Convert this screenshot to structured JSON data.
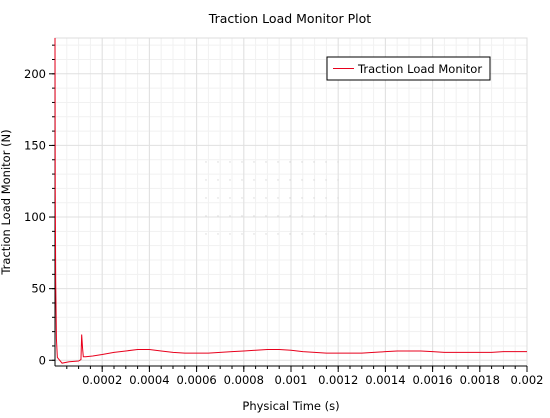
{
  "chart_data": {
    "type": "line",
    "title": "Traction Load Monitor Plot",
    "xlabel": "Physical Time (s)",
    "ylabel": "Traction Load Monitor (N)",
    "xlim": [
      0,
      0.002
    ],
    "ylim": [
      -4,
      225
    ],
    "x_ticks": [
      0.0002,
      0.0004,
      0.0006,
      0.0008,
      0.001,
      0.0012,
      0.0014,
      0.0016,
      0.0018,
      0.002
    ],
    "x_tick_labels": [
      "0.0002",
      "0.0004",
      "0.0006",
      "0.0008",
      "0.001",
      "0.0012",
      "0.0014",
      "0.0016",
      "0.0018",
      "0.002"
    ],
    "y_ticks": [
      0,
      50,
      100,
      150,
      200
    ],
    "y_tick_labels": [
      "0",
      "50",
      "100",
      "150",
      "200"
    ],
    "grid": true,
    "legend_position": "top-right",
    "series": [
      {
        "name": "Traction Load Monitor",
        "color": "#e8001c",
        "x": [
          0,
          5e-07,
          1e-06,
          3e-06,
          6e-06,
          1e-05,
          3e-05,
          6e-05,
          0.0001,
          0.00011,
          0.000113,
          0.000117,
          0.00012,
          0.00013,
          0.00016,
          0.0002,
          0.00025,
          0.0003,
          0.00035,
          0.0004,
          0.00045,
          0.0005,
          0.00055,
          0.0006,
          0.00065,
          0.0007,
          0.00075,
          0.0008,
          0.00085,
          0.0009,
          0.00095,
          0.001,
          0.00105,
          0.0011,
          0.00115,
          0.0012,
          0.00125,
          0.0013,
          0.00135,
          0.0014,
          0.00145,
          0.0015,
          0.00155,
          0.0016,
          0.00165,
          0.0017,
          0.00175,
          0.0018,
          0.00185,
          0.0019,
          0.00195,
          0.002
        ],
        "values": [
          225,
          170,
          120,
          55,
          15,
          2,
          -2,
          -1,
          -0.5,
          0.5,
          18,
          8,
          2.5,
          2.5,
          3,
          4,
          5.5,
          6.5,
          7.5,
          7.5,
          6.5,
          5.5,
          5,
          5,
          5,
          5.5,
          6,
          6.5,
          7,
          7.5,
          7.5,
          7,
          6,
          5.5,
          5,
          5,
          5,
          5,
          5.5,
          6,
          6.5,
          6.5,
          6.5,
          6,
          5.5,
          5.5,
          5.5,
          5.5,
          5.5,
          6,
          6,
          6
        ]
      }
    ]
  }
}
